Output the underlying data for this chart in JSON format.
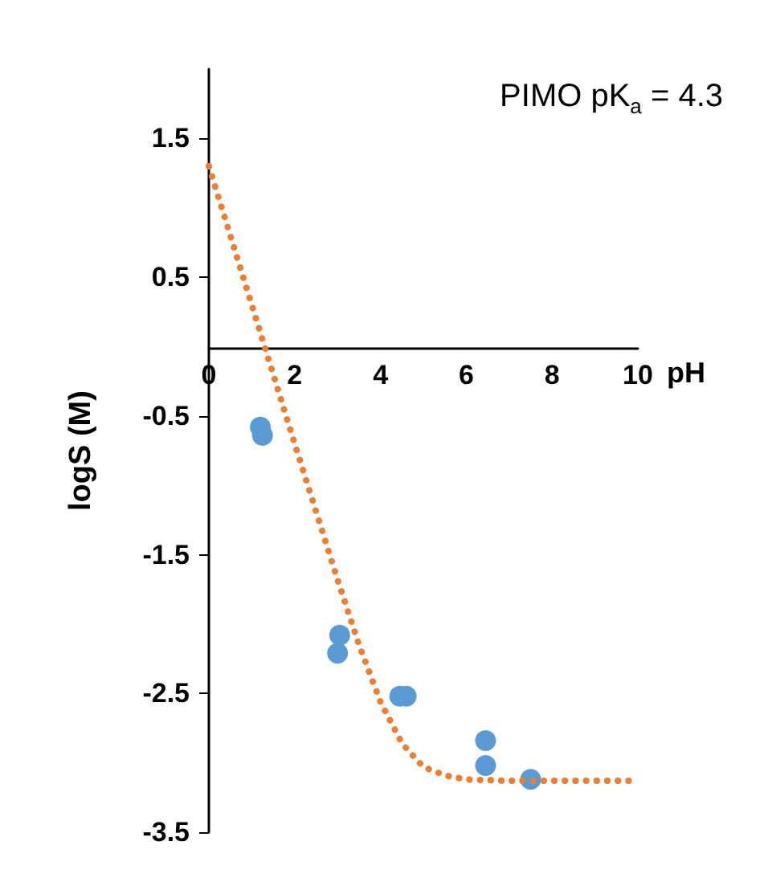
{
  "chart_data": {
    "type": "scatter",
    "xlabel": "pH",
    "ylabel": "logS (M)",
    "annotations": [
      "PIMO pK$_{a}$ = 4.3"
    ],
    "xlim": [
      0,
      10
    ],
    "xticks": [
      0,
      2,
      4,
      6,
      8,
      10
    ],
    "ylim": [
      -3.5,
      2
    ],
    "yticks": [
      -3.5,
      -2.5,
      -1.5,
      -0.5,
      0.5,
      1.5
    ],
    "grid": false,
    "marker": "circle",
    "series": [
      {
        "type": "line",
        "line_style": "dotted",
        "marker": "none",
        "color": "#ed7d31",
        "x": [
          0,
          0.5,
          1,
          1.5,
          2,
          2.5,
          3,
          3.5,
          4,
          4.5,
          5,
          5.5,
          6,
          7,
          8,
          9,
          10
        ],
        "values": [
          1.3,
          0.8,
          0.3,
          -0.2,
          -0.7,
          -1.19,
          -1.68,
          -2.15,
          -2.56,
          -2.86,
          -3.03,
          -3.09,
          -3.12,
          -3.13,
          -3.13,
          -3.13,
          -3.13
        ]
      },
      {
        "color": "#5b9bd5",
        "x": [
          1.2,
          1.25,
          3.05,
          3.0,
          4.45,
          4.6,
          6.45,
          6.45,
          7.5
        ],
        "values": [
          -0.58,
          -0.64,
          -2.08,
          -2.21,
          -2.52,
          -2.52,
          -2.84,
          -3.02,
          -3.12
        ]
      }
    ]
  }
}
